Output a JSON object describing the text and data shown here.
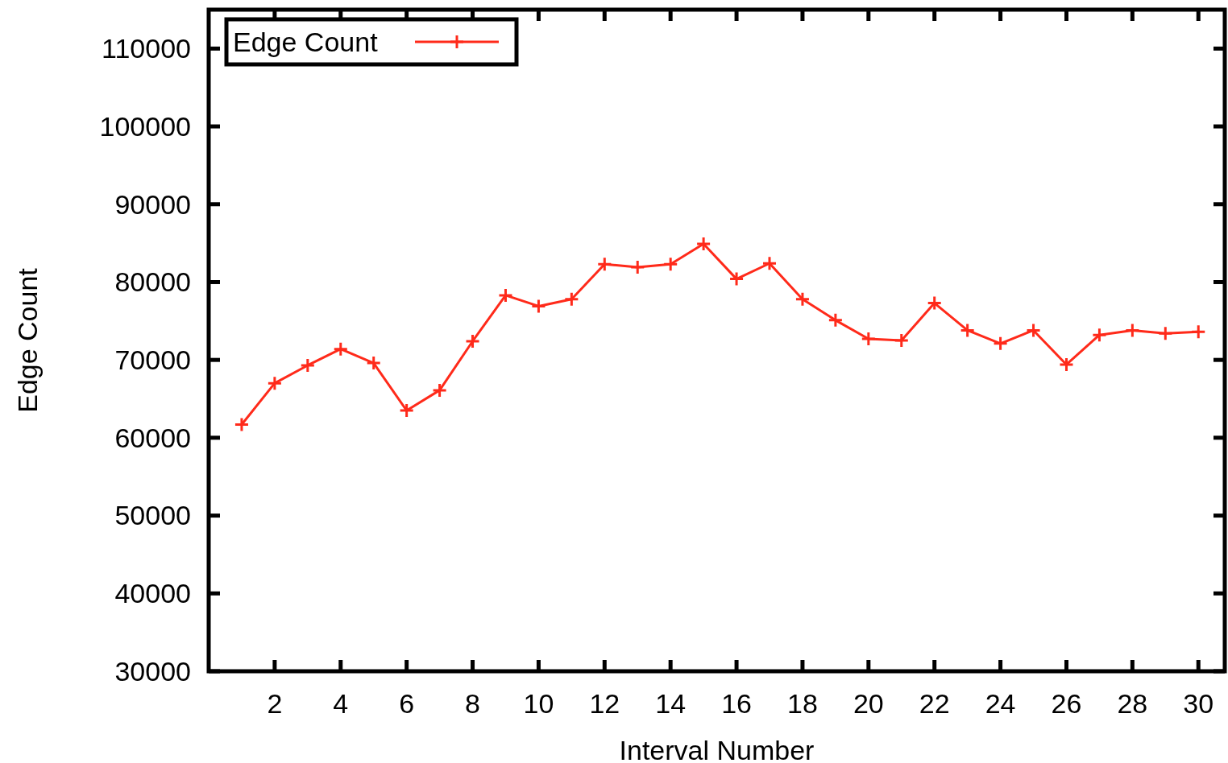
{
  "chart_data": {
    "type": "line",
    "xlabel": "Interval Number",
    "ylabel": "Edge Count",
    "x": [
      1,
      2,
      3,
      4,
      5,
      6,
      7,
      8,
      9,
      10,
      11,
      12,
      13,
      14,
      15,
      16,
      17,
      18,
      19,
      20,
      21,
      22,
      23,
      24,
      25,
      26,
      27,
      28,
      29,
      30
    ],
    "series": [
      {
        "name": "Edge Count",
        "color": "#ff2a1a",
        "values": [
          61700,
          67000,
          69300,
          71400,
          69600,
          63500,
          66100,
          72400,
          78300,
          76900,
          77800,
          82300,
          81900,
          82300,
          84900,
          80400,
          82400,
          77800,
          75100,
          72700,
          72500,
          77300,
          73800,
          72100,
          73800,
          69400,
          73200,
          73800,
          73400,
          73600
        ]
      }
    ],
    "xlim": [
      0,
      30.8
    ],
    "xticks": [
      2,
      4,
      6,
      8,
      10,
      12,
      14,
      16,
      18,
      20,
      22,
      24,
      26,
      28,
      30
    ],
    "ylim": [
      30000,
      115000
    ],
    "yticks": [
      30000,
      40000,
      50000,
      60000,
      70000,
      80000,
      90000,
      100000,
      110000
    ],
    "grid": false,
    "legend": "top left",
    "marker": "cross",
    "line_style": "solid"
  }
}
